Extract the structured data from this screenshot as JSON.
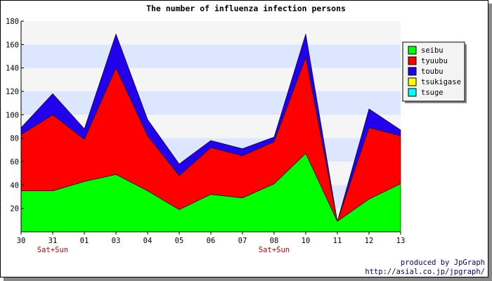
{
  "chart_data": {
    "type": "area",
    "stacked": true,
    "title": "The number of influenza infection persons",
    "categories": [
      "30",
      "31",
      "01",
      "03",
      "04",
      "05",
      "06",
      "07",
      "08",
      "10",
      "11",
      "12",
      "13"
    ],
    "sublabels": [
      "",
      "Sat+Sun",
      "",
      "",
      "",
      "",
      "",
      "",
      "Sat+Sun",
      "",
      "",
      "",
      ""
    ],
    "ylim": [
      0,
      180
    ],
    "yticks": [
      20,
      40,
      60,
      80,
      100,
      120,
      140,
      160,
      180
    ],
    "series": [
      {
        "name": "seibu",
        "color": "#00ff00",
        "values": [
          35,
          35,
          43,
          49,
          35,
          19,
          32,
          29,
          41,
          67,
          9,
          28,
          41
        ]
      },
      {
        "name": "tyuubu",
        "color": "#ff0000",
        "values": [
          48,
          65,
          36,
          91,
          47,
          29,
          40,
          36,
          36,
          82,
          0,
          61,
          41
        ]
      },
      {
        "name": "toubu",
        "color": "#2200ee",
        "values": [
          6,
          18,
          9,
          29,
          14,
          10,
          6,
          6,
          4,
          20,
          0,
          16,
          5
        ]
      },
      {
        "name": "tsukigase",
        "color": "#ffff00",
        "values": [
          0,
          0,
          0,
          0,
          0,
          0,
          0,
          0,
          0,
          0,
          0,
          0,
          0
        ]
      },
      {
        "name": "tsuge",
        "color": "#00ffff",
        "values": [
          0,
          0,
          0,
          0,
          0,
          0,
          0,
          0,
          0,
          0,
          0,
          0,
          0
        ]
      }
    ],
    "legend_position": "right",
    "band_colors": [
      "#f5f5f5",
      "#dde6ff"
    ]
  },
  "credits": {
    "line1": "produced by JpGraph",
    "line2": "http://asial.co.jp/jpgraph/"
  }
}
